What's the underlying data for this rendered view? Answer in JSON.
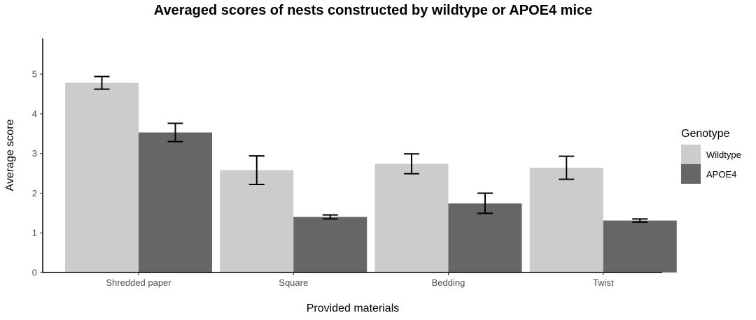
{
  "chart_data": {
    "type": "bar",
    "title": "Averaged scores of nests constructed by wildtype or APOE4 mice",
    "xlabel": "Provided materials",
    "ylabel": "Average score",
    "categories": [
      "Shredded paper",
      "Square",
      "Bedding",
      "Twist"
    ],
    "series": [
      {
        "name": "Wildtype",
        "color": "#cccccc",
        "values": [
          4.78,
          2.58,
          2.74,
          2.64
        ],
        "error_low": [
          4.62,
          2.22,
          2.49,
          2.35
        ],
        "error_high": [
          4.94,
          2.94,
          2.99,
          2.93
        ]
      },
      {
        "name": "APOE4",
        "color": "#666666",
        "values": [
          3.53,
          1.4,
          1.74,
          1.31
        ],
        "error_low": [
          3.3,
          1.35,
          1.49,
          1.27
        ],
        "error_high": [
          3.76,
          1.45,
          2.0,
          1.35
        ]
      }
    ],
    "ylim": [
      0,
      5.9
    ],
    "yticks": [
      0,
      1,
      2,
      3,
      4,
      5
    ],
    "grid": false,
    "legend": {
      "title": "Genotype",
      "position": "right"
    }
  }
}
